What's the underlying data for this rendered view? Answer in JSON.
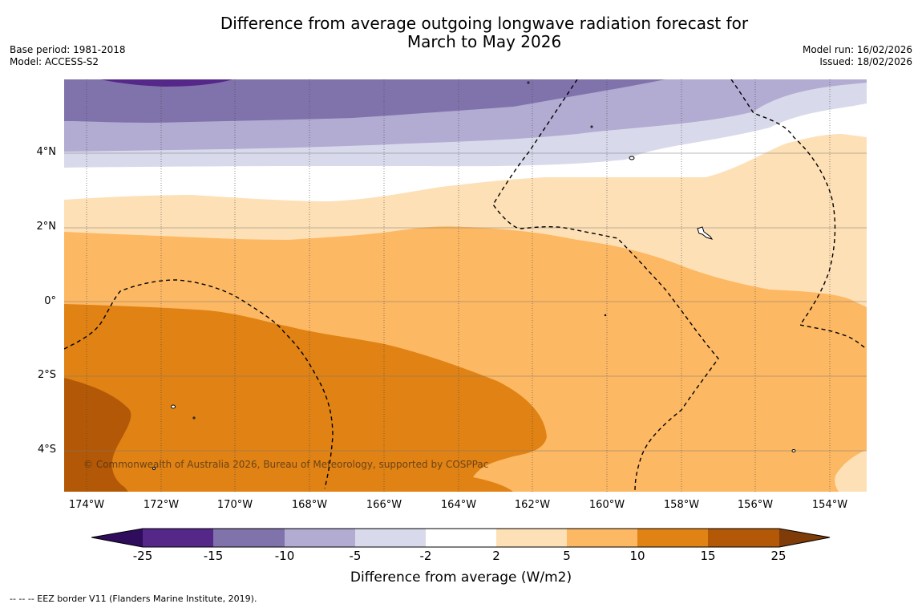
{
  "title": {
    "line1": "Difference from average outgoing longwave radiation forecast for",
    "line2": "March to May 2026"
  },
  "meta_left": {
    "base_period": "Base period: 1981-2018",
    "model": "Model: ACCESS-S2"
  },
  "meta_right": {
    "model_run": "Model run: 16/02/2026",
    "issued": "Issued: 18/02/2026"
  },
  "map": {
    "lat_labels": [
      "4°N",
      "2°N",
      "0°",
      "2°S",
      "4°S"
    ],
    "lon_labels": [
      "174°W",
      "172°W",
      "170°W",
      "168°W",
      "166°W",
      "164°W",
      "162°W",
      "160°W",
      "158°W",
      "156°W",
      "154°W"
    ],
    "copyright": "© Commonwealth of Australia 2026, Bureau of Meteorology, supported by COSPPac"
  },
  "colorbar": {
    "ticks": [
      "-25",
      "-15",
      "-10",
      "-5",
      "-2",
      "2",
      "5",
      "10",
      "15",
      "25"
    ],
    "colors": [
      "#2f0c5c",
      "#542788",
      "#8073ac",
      "#b2abd2",
      "#d8daeb",
      "#ffffff",
      "#fee0b6",
      "#fdb863",
      "#e08214",
      "#b35806",
      "#7f3b08"
    ],
    "label": "Difference from average (W/m2)"
  },
  "legend": {
    "eez": "-- -- -- EEZ border V11 (Flanders Marine Institute, 2019)."
  }
}
